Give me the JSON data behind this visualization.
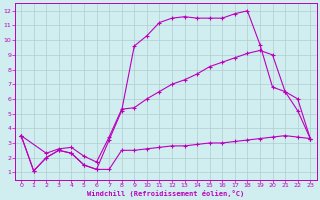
{
  "xlabel": "Windchill (Refroidissement éolien,°C)",
  "xlim": [
    -0.5,
    23.5
  ],
  "ylim": [
    0.5,
    12.5
  ],
  "xticks": [
    0,
    1,
    2,
    3,
    4,
    5,
    6,
    7,
    8,
    9,
    10,
    11,
    12,
    13,
    14,
    15,
    16,
    17,
    18,
    19,
    20,
    21,
    22,
    23
  ],
  "yticks": [
    1,
    2,
    3,
    4,
    5,
    6,
    7,
    8,
    9,
    10,
    11,
    12
  ],
  "bg_color": "#d0eef0",
  "line_color": "#bb00bb",
  "grid_color": "#b0cece",
  "line1_x": [
    0,
    1,
    2,
    3,
    4,
    5,
    6,
    7,
    8,
    9,
    10,
    11,
    12,
    13,
    14,
    15,
    16,
    17,
    18,
    19,
    20,
    21,
    22,
    23
  ],
  "line1_y": [
    3.5,
    1.1,
    2.0,
    2.5,
    2.3,
    1.5,
    1.2,
    3.2,
    5.2,
    9.6,
    10.3,
    11.2,
    11.5,
    11.6,
    11.5,
    11.5,
    11.5,
    11.8,
    12.0,
    9.7,
    6.8,
    6.5,
    5.2,
    3.3
  ],
  "line2_x": [
    0,
    1,
    2,
    3,
    4,
    5,
    6,
    7,
    8,
    9,
    10,
    11,
    12,
    13,
    14,
    15,
    16,
    17,
    18,
    19,
    20,
    21,
    22,
    23
  ],
  "line2_y": [
    3.5,
    1.1,
    2.0,
    2.5,
    2.3,
    1.5,
    1.2,
    1.2,
    2.5,
    2.5,
    2.6,
    2.7,
    2.8,
    2.8,
    2.9,
    3.0,
    3.0,
    3.1,
    3.2,
    3.3,
    3.4,
    3.5,
    3.4,
    3.3
  ],
  "line3_x": [
    0,
    2,
    3,
    4,
    5,
    6,
    7,
    8,
    9,
    10,
    11,
    12,
    13,
    14,
    15,
    16,
    17,
    18,
    19,
    20,
    21,
    22,
    23
  ],
  "line3_y": [
    3.5,
    2.3,
    2.6,
    2.7,
    2.1,
    1.7,
    3.4,
    5.3,
    5.4,
    6.0,
    6.5,
    7.0,
    7.3,
    7.7,
    8.2,
    8.5,
    8.8,
    9.1,
    9.3,
    9.0,
    6.5,
    6.0,
    3.3
  ]
}
